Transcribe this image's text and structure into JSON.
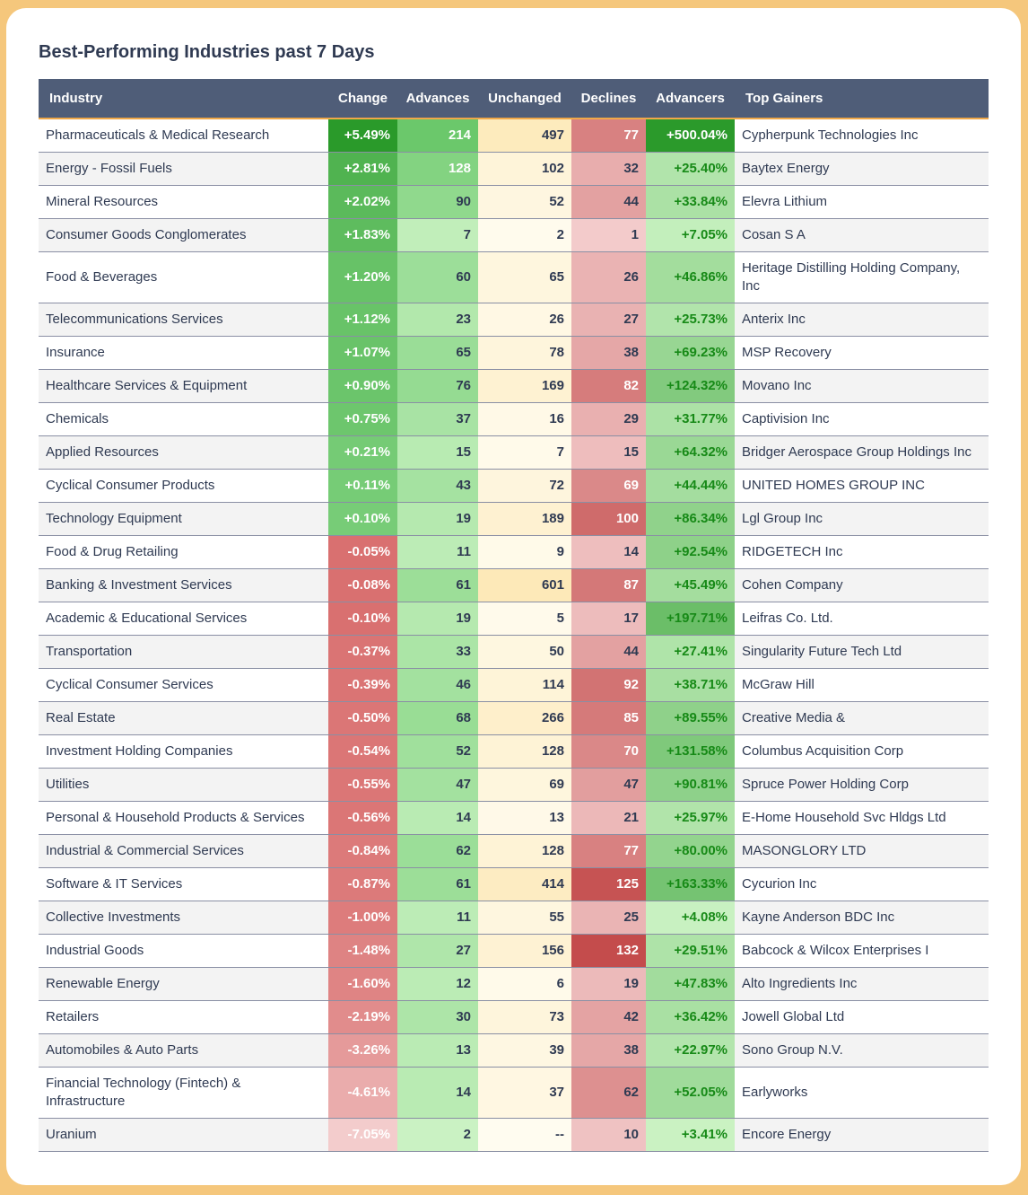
{
  "title": "Best-Performing Industries past 7 Days",
  "headers": [
    "Industry",
    "Change",
    "Advances",
    "Unchanged",
    "Declines",
    "Advancers",
    "Top Gainers"
  ],
  "rows": [
    {
      "industry": "Pharmaceuticals & Medical Research",
      "change": "+5.49%",
      "advances": "214",
      "unchanged": "497",
      "declines": "77",
      "advancers": "+500.04%",
      "top_gainer": "Cypherpunk Technologies Inc"
    },
    {
      "industry": "Energy - Fossil Fuels",
      "change": "+2.81%",
      "advances": "128",
      "unchanged": "102",
      "declines": "32",
      "advancers": "+25.40%",
      "top_gainer": "Baytex Energy"
    },
    {
      "industry": "Mineral Resources",
      "change": "+2.02%",
      "advances": "90",
      "unchanged": "52",
      "declines": "44",
      "advancers": "+33.84%",
      "top_gainer": "Elevra Lithium"
    },
    {
      "industry": "Consumer Goods Conglomerates",
      "change": "+1.83%",
      "advances": "7",
      "unchanged": "2",
      "declines": "1",
      "advancers": "+7.05%",
      "top_gainer": "Cosan S A"
    },
    {
      "industry": "Food & Beverages",
      "change": "+1.20%",
      "advances": "60",
      "unchanged": "65",
      "declines": "26",
      "advancers": "+46.86%",
      "top_gainer": "Heritage Distilling Holding Company, Inc"
    },
    {
      "industry": "Telecommunications Services",
      "change": "+1.12%",
      "advances": "23",
      "unchanged": "26",
      "declines": "27",
      "advancers": "+25.73%",
      "top_gainer": "Anterix Inc"
    },
    {
      "industry": "Insurance",
      "change": "+1.07%",
      "advances": "65",
      "unchanged": "78",
      "declines": "38",
      "advancers": "+69.23%",
      "top_gainer": "MSP Recovery"
    },
    {
      "industry": "Healthcare Services & Equipment",
      "change": "+0.90%",
      "advances": "76",
      "unchanged": "169",
      "declines": "82",
      "advancers": "+124.32%",
      "top_gainer": "Movano Inc"
    },
    {
      "industry": "Chemicals",
      "change": "+0.75%",
      "advances": "37",
      "unchanged": "16",
      "declines": "29",
      "advancers": "+31.77%",
      "top_gainer": "Captivision Inc"
    },
    {
      "industry": "Applied Resources",
      "change": "+0.21%",
      "advances": "15",
      "unchanged": "7",
      "declines": "15",
      "advancers": "+64.32%",
      "top_gainer": "Bridger Aerospace Group Holdings Inc"
    },
    {
      "industry": "Cyclical Consumer Products",
      "change": "+0.11%",
      "advances": "43",
      "unchanged": "72",
      "declines": "69",
      "advancers": "+44.44%",
      "top_gainer": "UNITED HOMES GROUP INC"
    },
    {
      "industry": "Technology Equipment",
      "change": "+0.10%",
      "advances": "19",
      "unchanged": "189",
      "declines": "100",
      "advancers": "+86.34%",
      "top_gainer": "Lgl Group Inc"
    },
    {
      "industry": "Food & Drug Retailing",
      "change": "-0.05%",
      "advances": "11",
      "unchanged": "9",
      "declines": "14",
      "advancers": "+92.54%",
      "top_gainer": "RIDGETECH Inc"
    },
    {
      "industry": "Banking & Investment Services",
      "change": "-0.08%",
      "advances": "61",
      "unchanged": "601",
      "declines": "87",
      "advancers": "+45.49%",
      "top_gainer": "Cohen Company"
    },
    {
      "industry": "Academic & Educational Services",
      "change": "-0.10%",
      "advances": "19",
      "unchanged": "5",
      "declines": "17",
      "advancers": "+197.71%",
      "top_gainer": "Leifras Co. Ltd."
    },
    {
      "industry": "Transportation",
      "change": "-0.37%",
      "advances": "33",
      "unchanged": "50",
      "declines": "44",
      "advancers": "+27.41%",
      "top_gainer": "Singularity Future Tech Ltd"
    },
    {
      "industry": "Cyclical Consumer Services",
      "change": "-0.39%",
      "advances": "46",
      "unchanged": "114",
      "declines": "92",
      "advancers": "+38.71%",
      "top_gainer": "McGraw Hill"
    },
    {
      "industry": "Real Estate",
      "change": "-0.50%",
      "advances": "68",
      "unchanged": "266",
      "declines": "85",
      "advancers": "+89.55%",
      "top_gainer": "Creative Media &"
    },
    {
      "industry": "Investment Holding Companies",
      "change": "-0.54%",
      "advances": "52",
      "unchanged": "128",
      "declines": "70",
      "advancers": "+131.58%",
      "top_gainer": "Columbus Acquisition Corp"
    },
    {
      "industry": "Utilities",
      "change": "-0.55%",
      "advances": "47",
      "unchanged": "69",
      "declines": "47",
      "advancers": "+90.81%",
      "top_gainer": "Spruce Power Holding Corp"
    },
    {
      "industry": "Personal & Household Products & Services",
      "change": "-0.56%",
      "advances": "14",
      "unchanged": "13",
      "declines": "21",
      "advancers": "+25.97%",
      "top_gainer": "E-Home Household Svc Hldgs Ltd"
    },
    {
      "industry": "Industrial & Commercial Services",
      "change": "-0.84%",
      "advances": "62",
      "unchanged": "128",
      "declines": "77",
      "advancers": "+80.00%",
      "top_gainer": "MASONGLORY LTD"
    },
    {
      "industry": "Software & IT Services",
      "change": "-0.87%",
      "advances": "61",
      "unchanged": "414",
      "declines": "125",
      "advancers": "+163.33%",
      "top_gainer": "Cycurion Inc"
    },
    {
      "industry": "Collective Investments",
      "change": "-1.00%",
      "advances": "11",
      "unchanged": "55",
      "declines": "25",
      "advancers": "+4.08%",
      "top_gainer": "Kayne Anderson BDC Inc"
    },
    {
      "industry": "Industrial Goods",
      "change": "-1.48%",
      "advances": "27",
      "unchanged": "156",
      "declines": "132",
      "advancers": "+29.51%",
      "top_gainer": "Babcock & Wilcox Enterprises I"
    },
    {
      "industry": "Renewable Energy",
      "change": "-1.60%",
      "advances": "12",
      "unchanged": "6",
      "declines": "19",
      "advancers": "+47.83%",
      "top_gainer": "Alto Ingredients Inc"
    },
    {
      "industry": "Retailers",
      "change": "-2.19%",
      "advances": "30",
      "unchanged": "73",
      "declines": "42",
      "advancers": "+36.42%",
      "top_gainer": "Jowell Global Ltd"
    },
    {
      "industry": "Automobiles & Auto Parts",
      "change": "-3.26%",
      "advances": "13",
      "unchanged": "39",
      "declines": "38",
      "advancers": "+22.97%",
      "top_gainer": "Sono Group N.V."
    },
    {
      "industry": "Financial Technology (Fintech) & Infrastructure",
      "change": "-4.61%",
      "advances": "14",
      "unchanged": "37",
      "declines": "62",
      "advancers": "+52.05%",
      "top_gainer": "Earlyworks"
    },
    {
      "industry": "Uranium",
      "change": "-7.05%",
      "advances": "2",
      "unchanged": "--",
      "declines": "10",
      "advancers": "+3.41%",
      "top_gainer": "Encore Energy"
    }
  ]
}
